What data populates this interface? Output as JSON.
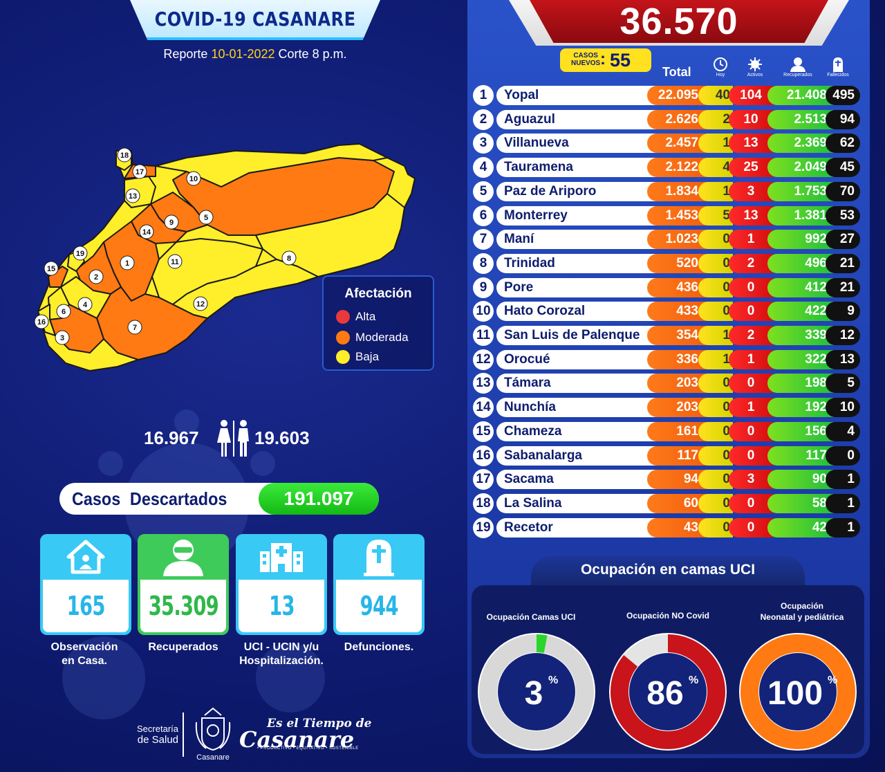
{
  "header": {
    "title": "COVID-19 CASANARE",
    "report_prefix": "Reporte",
    "report_date": "10-01-2022",
    "report_suffix": "Corte 8 p.m."
  },
  "map": {
    "region_numbers": [
      "1",
      "2",
      "3",
      "4",
      "5",
      "6",
      "7",
      "8",
      "9",
      "10",
      "11",
      "12",
      "13",
      "14",
      "15",
      "16",
      "17",
      "18",
      "19"
    ],
    "legend": {
      "title": "Afectación",
      "items": [
        {
          "label": "Alta",
          "color": "#e8393b"
        },
        {
          "label": "Moderada",
          "color": "#ff7a12"
        },
        {
          "label": "Baja",
          "color": "#ffee2a"
        }
      ]
    }
  },
  "gender": {
    "female": "16.967",
    "male": "19.603"
  },
  "discarded": {
    "label": "Casos  Descartados",
    "value": "191.097"
  },
  "cards": [
    {
      "icon": "house-icon",
      "value": "165",
      "label_line1": "Observación",
      "label_line2": "en Casa.",
      "top_color": "#38c9f5",
      "value_color": "#27b6e8"
    },
    {
      "icon": "person-icon",
      "value": "35.309",
      "label_line1": "Recuperados",
      "label_line2": "",
      "top_color": "#3ecb5a",
      "value_color": "#2eb84a"
    },
    {
      "icon": "hospital-icon",
      "value": "13",
      "label_line1": "UCI - UCIN y/u",
      "label_line2": "Hospitalización.",
      "top_color": "#38c9f5",
      "value_color": "#27b6e8"
    },
    {
      "icon": "tombstone-icon",
      "value": "944",
      "label_line1": "Defunciones.",
      "label_line2": "",
      "top_color": "#38c9f5",
      "value_color": "#27b6e8"
    }
  ],
  "footer": {
    "secretaria_line1": "Secretaría",
    "secretaria_line2": "de Salud",
    "crest_name": "Casanare",
    "brand_line1": "Es el Tiempo de",
    "brand_line2": "Casanare",
    "brand_tagline": "• PRODUCTIVO • EQUITATIVO • SOSTENIBLE"
  },
  "summary": {
    "total_cases": "36.570",
    "new_cases_label_line1": "CASOS",
    "new_cases_label_line2": "NUEVOS",
    "new_cases": "55"
  },
  "columns": {
    "total": "Total",
    "today": "Hoy",
    "active": "Activos",
    "recovered": "Recuperados",
    "deceased": "Fallecidos"
  },
  "municipalities": [
    {
      "rank": "1",
      "name": "Yopal",
      "total": "22.095",
      "today": "40",
      "active": "104",
      "recovered": "21.408",
      "deceased": "495"
    },
    {
      "rank": "2",
      "name": "Aguazul",
      "total": "2.626",
      "today": "2",
      "active": "10",
      "recovered": "2.513",
      "deceased": "94"
    },
    {
      "rank": "3",
      "name": "Villanueva",
      "total": "2.457",
      "today": "1",
      "active": "13",
      "recovered": "2.369",
      "deceased": "62"
    },
    {
      "rank": "4",
      "name": "Tauramena",
      "total": "2.122",
      "today": "4",
      "active": "25",
      "recovered": "2.049",
      "deceased": "45"
    },
    {
      "rank": "5",
      "name": "Paz de Ariporo",
      "total": "1.834",
      "today": "1",
      "active": "3",
      "recovered": "1.753",
      "deceased": "70"
    },
    {
      "rank": "6",
      "name": "Monterrey",
      "total": "1.453",
      "today": "5",
      "active": "13",
      "recovered": "1.381",
      "deceased": "53"
    },
    {
      "rank": "7",
      "name": "Maní",
      "total": "1.023",
      "today": "0",
      "active": "1",
      "recovered": "992",
      "deceased": "27"
    },
    {
      "rank": "8",
      "name": "Trinidad",
      "total": "520",
      "today": "0",
      "active": "2",
      "recovered": "496",
      "deceased": "21"
    },
    {
      "rank": "9",
      "name": "Pore",
      "total": "436",
      "today": "0",
      "active": "0",
      "recovered": "412",
      "deceased": "21"
    },
    {
      "rank": "10",
      "name": "Hato Corozal",
      "total": "433",
      "today": "0",
      "active": "0",
      "recovered": "422",
      "deceased": "9"
    },
    {
      "rank": "11",
      "name": "San Luis de Palenque",
      "total": "354",
      "today": "1",
      "active": "2",
      "recovered": "339",
      "deceased": "12"
    },
    {
      "rank": "12",
      "name": "Orocué",
      "total": "336",
      "today": "1",
      "active": "1",
      "recovered": "322",
      "deceased": "13"
    },
    {
      "rank": "13",
      "name": "Támara",
      "total": "203",
      "today": "0",
      "active": "0",
      "recovered": "198",
      "deceased": "5"
    },
    {
      "rank": "14",
      "name": "Nunchía",
      "total": "203",
      "today": "0",
      "active": "1",
      "recovered": "192",
      "deceased": "10"
    },
    {
      "rank": "15",
      "name": "Chameza",
      "total": "161",
      "today": "0",
      "active": "0",
      "recovered": "156",
      "deceased": "4"
    },
    {
      "rank": "16",
      "name": "Sabanalarga",
      "total": "117",
      "today": "0",
      "active": "0",
      "recovered": "117",
      "deceased": "0"
    },
    {
      "rank": "17",
      "name": "Sacama",
      "total": "94",
      "today": "0",
      "active": "3",
      "recovered": "90",
      "deceased": "1"
    },
    {
      "rank": "18",
      "name": "La Salina",
      "total": "60",
      "today": "0",
      "active": "0",
      "recovered": "58",
      "deceased": "1"
    },
    {
      "rank": "19",
      "name": "Recetor",
      "total": "43",
      "today": "0",
      "active": "0",
      "recovered": "42",
      "deceased": "1"
    }
  ],
  "uci": {
    "title": "Ocupación en camas UCI",
    "gauges": [
      {
        "label_line1": "",
        "label_line2": "Ocupación Camas UCI",
        "value": "3",
        "percent": 3,
        "fill_color": "#2bd52b",
        "track_color": "#d8d8d8"
      },
      {
        "label_line1": "",
        "label_line2": "Ocupación NO Covid",
        "value": "86",
        "percent": 86,
        "fill_color": "#c8141a",
        "track_color": "#e4e4e4"
      },
      {
        "label_line1": "Ocupación",
        "label_line2": "Neonatal y pediátrica",
        "value": "100",
        "percent": 100,
        "fill_color": "#ff7a12",
        "track_color": "#e4e4e4"
      }
    ],
    "percent_sign": "%"
  }
}
